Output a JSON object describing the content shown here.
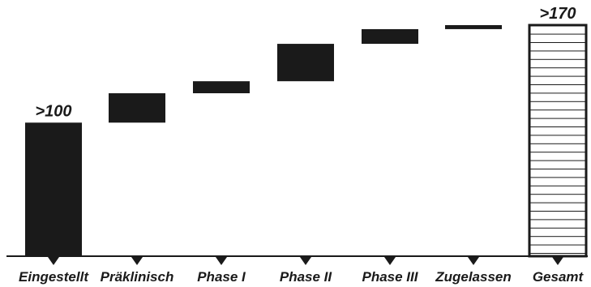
{
  "chart_data": {
    "type": "bar",
    "subtype": "waterfall",
    "categories": [
      "Eingestellt",
      "Präklinisch",
      "Phase I",
      "Phase II",
      "Phase III",
      "Zugelassen",
      "Gesamt"
    ],
    "bars": [
      {
        "category": "Eingestellt",
        "kind": "total",
        "start": 0,
        "end": 100,
        "label": ">100"
      },
      {
        "category": "Präklinisch",
        "kind": "step",
        "start": 100,
        "end": 122,
        "label": ""
      },
      {
        "category": "Phase I",
        "kind": "step",
        "start": 122,
        "end": 131,
        "label": ""
      },
      {
        "category": "Phase II",
        "kind": "step",
        "start": 131,
        "end": 159,
        "label": ""
      },
      {
        "category": "Phase III",
        "kind": "step",
        "start": 159,
        "end": 170,
        "label": ""
      },
      {
        "category": "Zugelassen",
        "kind": "step",
        "start": 170,
        "end": 173,
        "label": ""
      },
      {
        "category": "Gesamt",
        "kind": "total",
        "start": 0,
        "end": 173,
        "label": ">170"
      }
    ],
    "ylim": [
      0,
      173
    ],
    "title": "",
    "xlabel": "",
    "ylabel": "",
    "grid": false,
    "colors": {
      "bar": "#1a1a1a",
      "total_fill": "#ffffff",
      "total_hatch": "#1a1a1a",
      "axis": "#1a1a1a"
    }
  }
}
